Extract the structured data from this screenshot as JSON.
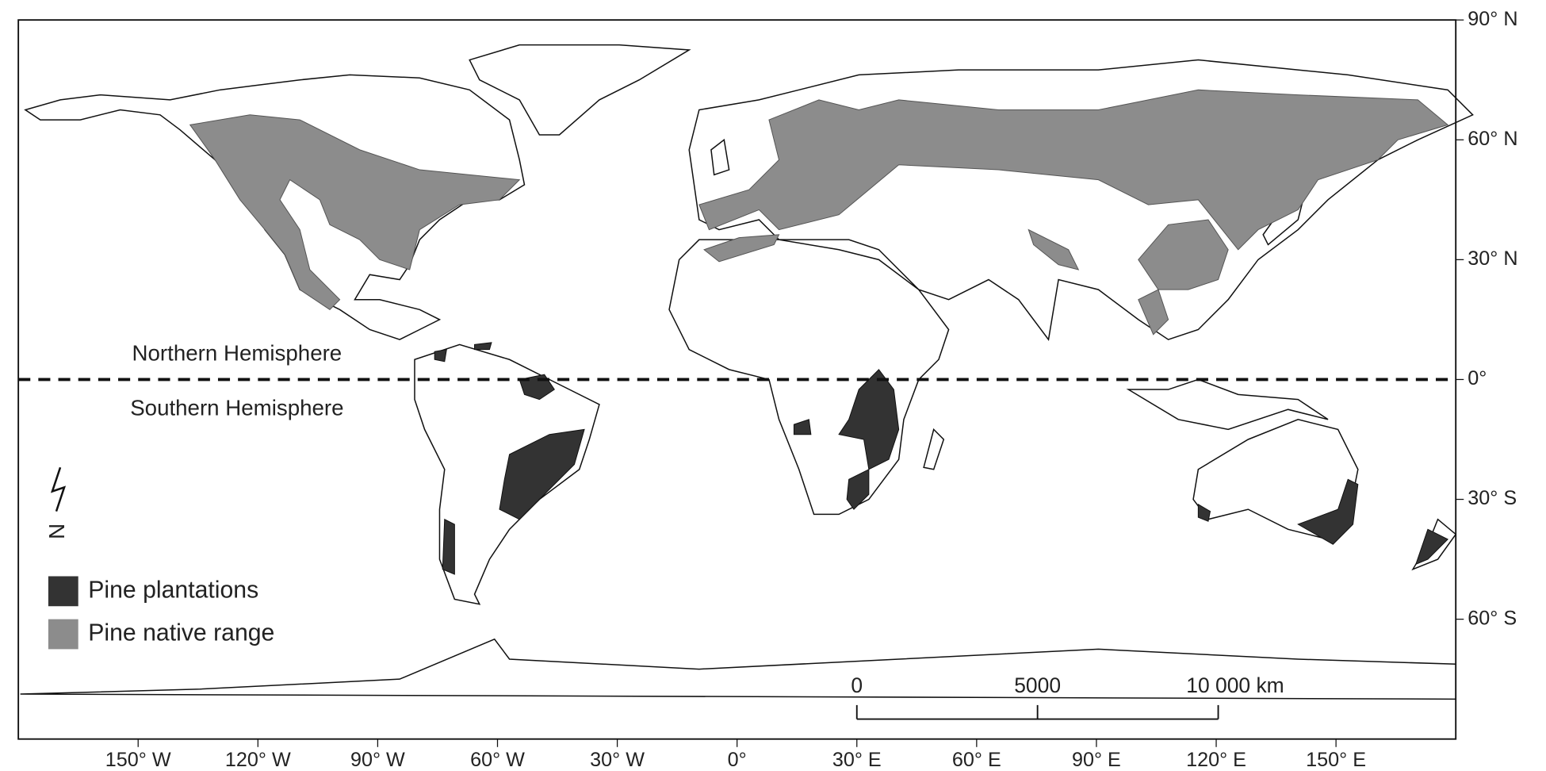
{
  "map": {
    "lon_ticks": [
      {
        "value": -150,
        "label": "150° W"
      },
      {
        "value": -120,
        "label": "120° W"
      },
      {
        "value": -90,
        "label": "90° W"
      },
      {
        "value": -60,
        "label": "60° W"
      },
      {
        "value": -30,
        "label": "30° W"
      },
      {
        "value": 0,
        "label": "0°"
      },
      {
        "value": 30,
        "label": "30° E"
      },
      {
        "value": 60,
        "label": "60° E"
      },
      {
        "value": 90,
        "label": "90° E"
      },
      {
        "value": 120,
        "label": "120° E"
      },
      {
        "value": 150,
        "label": "150° E"
      }
    ],
    "lat_ticks": [
      {
        "value": 90,
        "label": "90° N"
      },
      {
        "value": 60,
        "label": "60° N"
      },
      {
        "value": 30,
        "label": "30° N"
      },
      {
        "value": 0,
        "label": "0°"
      },
      {
        "value": -30,
        "label": "30° S"
      },
      {
        "value": -60,
        "label": "60° S"
      }
    ],
    "hemispheres": {
      "north": "Northern Hemisphere",
      "south": "Southern Hemisphere"
    },
    "legend": [
      {
        "label": "Pine plantations",
        "color": "#333333"
      },
      {
        "label": "Pine native range",
        "color": "#8c8c8c"
      }
    ],
    "scale_bar": [
      {
        "value": 0,
        "label": "0"
      },
      {
        "value": 5000,
        "label": "5000"
      },
      {
        "value": 10000,
        "label": "10 000 km"
      }
    ],
    "north_arrow": "N"
  }
}
